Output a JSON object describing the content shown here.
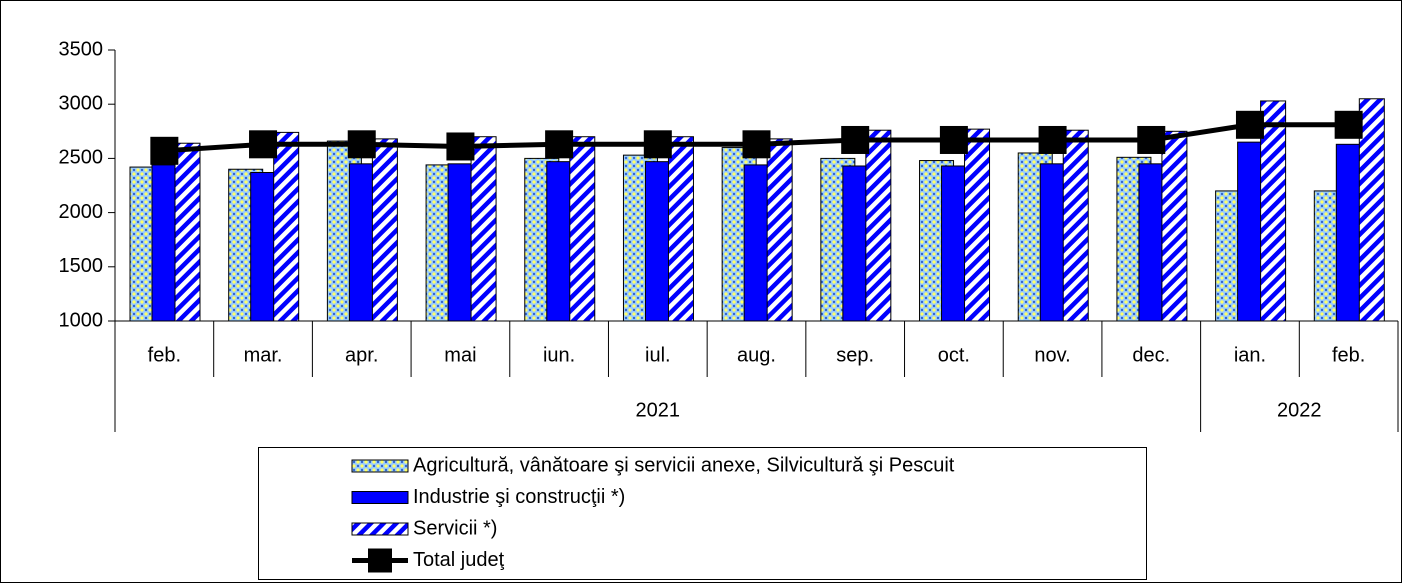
{
  "chart_data": {
    "type": "bar_line",
    "categories": [
      "feb.",
      "mar.",
      "apr.",
      "mai",
      "iun.",
      "iul.",
      "aug.",
      "sep.",
      "oct.",
      "nov.",
      "dec.",
      "ian.",
      "feb."
    ],
    "group_labels": [
      "2021",
      null,
      null,
      null,
      null,
      null,
      null,
      null,
      null,
      null,
      null,
      "2022",
      null
    ],
    "series": [
      {
        "name": "Agricultură, vânătoare şi servicii anexe, Silvicultură şi Pescuit",
        "kind": "bar",
        "pattern": "dots",
        "color": "#99ccff",
        "values": [
          2420,
          2400,
          2660,
          2440,
          2500,
          2530,
          2600,
          2500,
          2480,
          2550,
          2510,
          2200,
          2200
        ]
      },
      {
        "name": "Industrie şi construcţii *)",
        "kind": "bar",
        "pattern": "solid",
        "color": "#0000ff",
        "values": [
          2440,
          2370,
          2450,
          2450,
          2470,
          2470,
          2440,
          2430,
          2430,
          2450,
          2450,
          2650,
          2630
        ]
      },
      {
        "name": "Servicii *)",
        "kind": "bar",
        "pattern": "stripes",
        "color": "#0000ff",
        "values": [
          2640,
          2740,
          2680,
          2700,
          2700,
          2700,
          2680,
          2760,
          2770,
          2760,
          2750,
          3030,
          3050
        ]
      },
      {
        "name": "Total judeţ",
        "kind": "line",
        "color": "#000000",
        "values": [
          2570,
          2630,
          2630,
          2610,
          2630,
          2630,
          2630,
          2670,
          2670,
          2670,
          2670,
          2810,
          2810
        ]
      }
    ],
    "ylim": [
      1000,
      3500
    ],
    "yticks": [
      1000,
      1500,
      2000,
      2500,
      3000,
      3500
    ],
    "grid": false
  }
}
